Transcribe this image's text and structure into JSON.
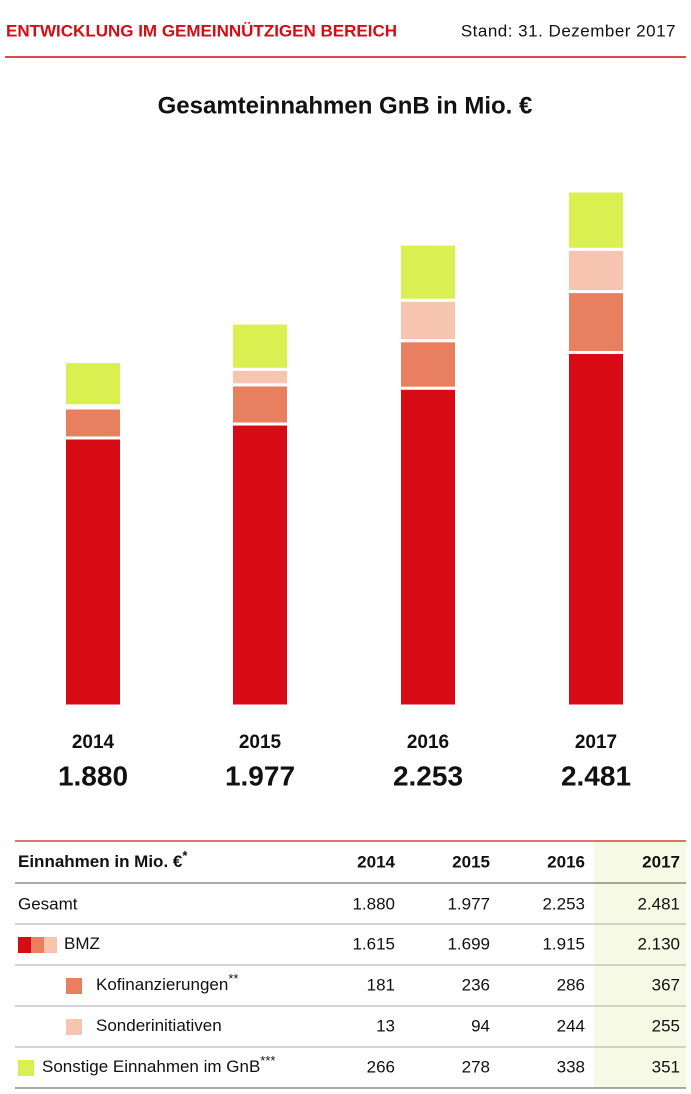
{
  "header": {
    "title": "ENTWICKLUNG IM GEMEINNÜTZIGEN BEREICH",
    "date": "Stand: 31. Dezember 2017"
  },
  "chart_data": {
    "type": "stacked-bar",
    "title": "Gesamteinnahmen GnB in Mio. €",
    "categories": [
      "2014",
      "2015",
      "2016",
      "2017"
    ],
    "totals": {
      "name": "Gesamt",
      "values": [
        1880,
        1977,
        2253,
        2481
      ],
      "value_labels": [
        "1.880",
        "1.977",
        "2.253",
        "2.481"
      ]
    },
    "series": [
      {
        "name": "BMZ",
        "color": "#d60b13",
        "values": [
          1615,
          1699,
          1915,
          2130
        ],
        "value_labels": [
          "1.615",
          "1.699",
          "1.915",
          "2.130"
        ]
      },
      {
        "name": "Kofinanzierungen",
        "note": "**",
        "color": "#e8805f",
        "values": [
          181,
          236,
          286,
          367
        ]
      },
      {
        "name": "Sonderinitiativen",
        "color": "#f7c4b0",
        "values": [
          13,
          94,
          244,
          255
        ]
      },
      {
        "name": "Sonstige Einnahmen im GnB",
        "note": "***",
        "color": "#daf050",
        "values": [
          266,
          278,
          338,
          351
        ]
      }
    ]
  },
  "table": {
    "title": "Einnahmen in Mio. €",
    "note": "*"
  }
}
